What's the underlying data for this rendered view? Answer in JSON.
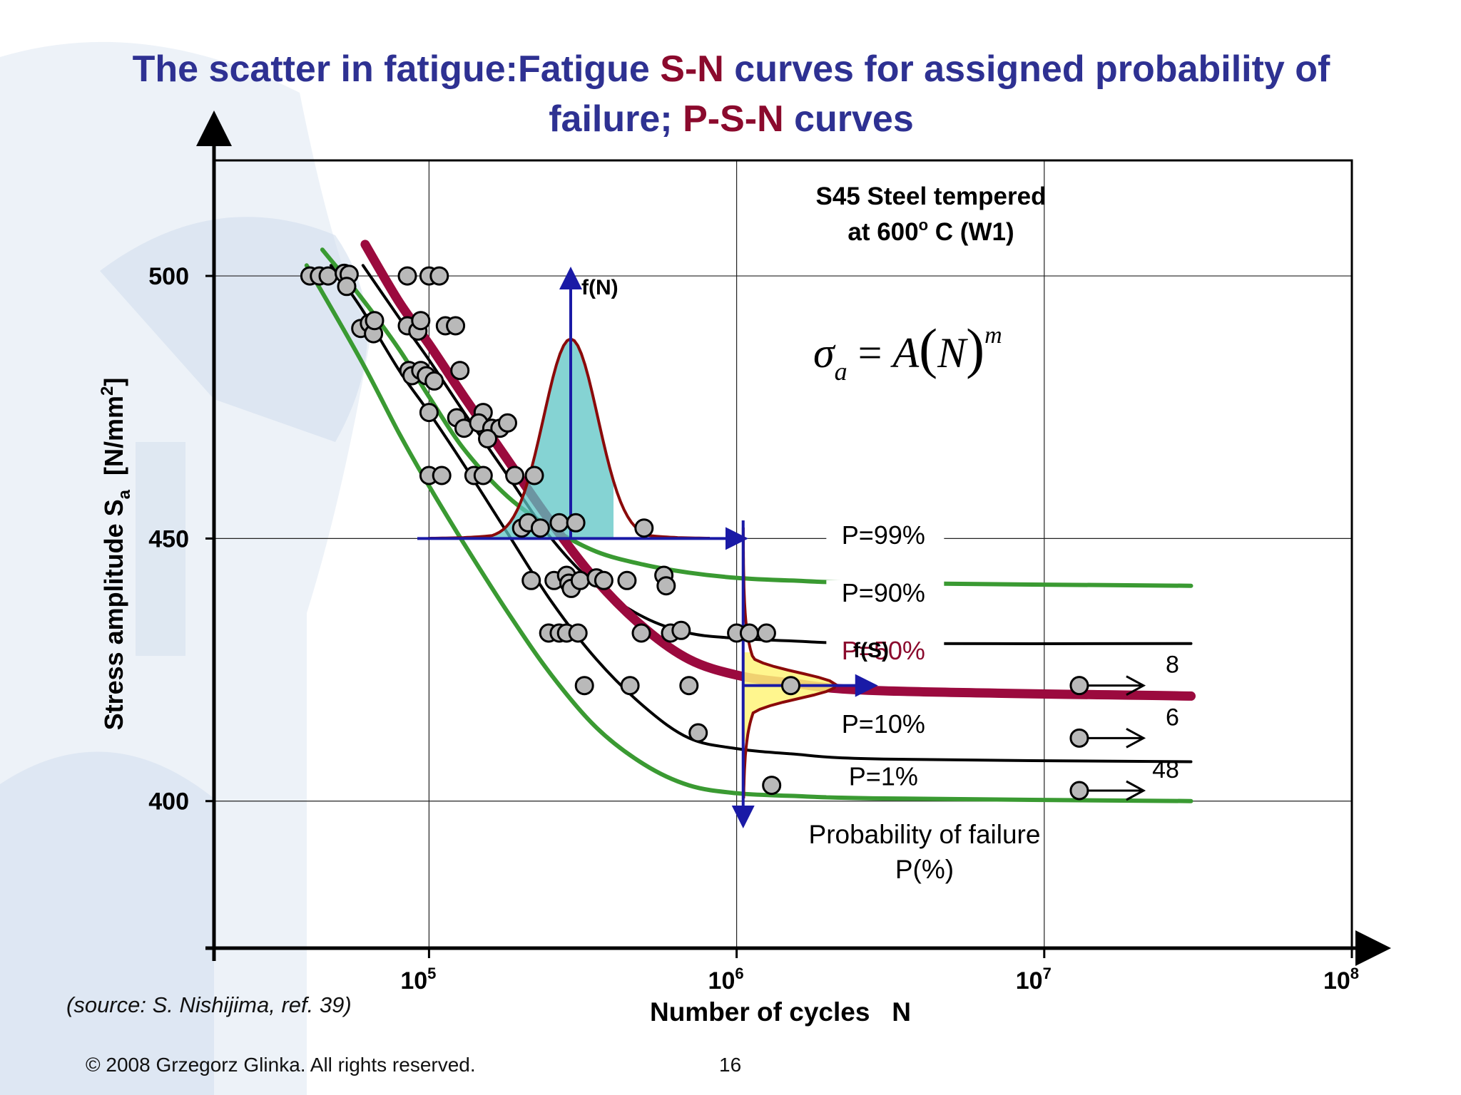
{
  "slide": {
    "title_part1": "The scatter in fatigue:Fatigue ",
    "title_hl1": "S-N",
    "title_part2": " curves for assigned probability of failure; ",
    "title_hl2": "P-S-N",
    "title_part3": " curves",
    "source": "(source: S. Nishijima, ref. 39)",
    "copyright": "© 2008 Grzegorz Glinka.  All rights reserved.",
    "page_number": "16"
  },
  "chart_data": {
    "type": "scatter",
    "title": "",
    "material_line1": "S45 Steel tempered",
    "material_line2_main": "at 600",
    "material_line2_sup": "o",
    "material_line2_end": " C (W1)",
    "formula": "σa = A(N)m",
    "xlabel": "Number of cycles   N",
    "ylabel_main": "Stress amplitude S",
    "ylabel_sub": "a",
    "ylabel_unit": "  [N/mm",
    "ylabel_unit_sup": "2",
    "ylabel_unit_end": "]",
    "xscale": "log",
    "xlim": [
      20000,
      100000000
    ],
    "ylim": [
      372,
      522
    ],
    "x_ticks": [
      {
        "value": 100000,
        "base": "10",
        "exp": "5"
      },
      {
        "value": 1000000,
        "base": "10",
        "exp": "6"
      },
      {
        "value": 10000000,
        "base": "10",
        "exp": "7"
      },
      {
        "value": 100000000,
        "base": "10",
        "exp": "8"
      }
    ],
    "y_ticks": [
      400,
      450,
      500
    ],
    "grid": true,
    "colors": {
      "green": "#3a9a32",
      "black": "#000000",
      "median": "#9b0a3e",
      "axis_blue": "#1a1aa6",
      "points_fill": "#b9b9b9",
      "fN_fill": "#5cc4c4",
      "fS_fill": "#fff47a",
      "text_dark_red": "#8b0a2d"
    },
    "series": [
      {
        "name": "P=99%",
        "color": "#3a9a32",
        "x": [
          45000,
          60000,
          80000,
          100000,
          130000,
          180000,
          250000,
          350000,
          500000,
          700000,
          1000000,
          1500000,
          3000000,
          30000000
        ],
        "y": [
          505,
          496,
          486,
          477,
          467,
          458,
          452,
          447.5,
          445,
          443.5,
          442.5,
          442,
          441.5,
          441
        ]
      },
      {
        "name": "P=90%",
        "color": "#000000",
        "x": [
          61000,
          80000,
          100000,
          130000,
          180000,
          250000,
          350000,
          500000,
          700000,
          1000000,
          1500000,
          3000000,
          30000000
        ],
        "y": [
          502,
          492,
          484,
          474,
          462,
          450,
          441,
          435,
          432,
          431,
          430.5,
          430,
          430
        ]
      },
      {
        "name": "P=50%",
        "color": "#9b0a3e",
        "x": [
          62000,
          80000,
          100000,
          130000,
          180000,
          250000,
          350000,
          500000,
          700000,
          1000000,
          1500000,
          3000000,
          30000000
        ],
        "y": [
          506,
          495,
          487,
          477,
          465,
          453,
          442,
          433,
          427,
          424,
          422.5,
          421,
          420
        ]
      },
      {
        "name": "P=10%",
        "color": "#000000",
        "x": [
          48000,
          60000,
          80000,
          100000,
          130000,
          180000,
          250000,
          350000,
          500000,
          700000,
          1000000,
          1500000,
          3000000,
          30000000
        ],
        "y": [
          502,
          494,
          482,
          474,
          464,
          451,
          438,
          427,
          418,
          412,
          410,
          409,
          408,
          407.5
        ]
      },
      {
        "name": "P=1%",
        "color": "#3a9a32",
        "x": [
          40000,
          60000,
          80000,
          100000,
          130000,
          180000,
          250000,
          350000,
          500000,
          700000,
          1000000,
          1500000,
          3000000,
          30000000
        ],
        "y": [
          502,
          484,
          470,
          460,
          449,
          436,
          424,
          414,
          407,
          403,
          401.5,
          401,
          400.5,
          400
        ]
      }
    ],
    "series_labels": [
      "P=99%",
      "P=90%",
      "P=50%",
      "P=10%",
      "P=1%"
    ],
    "series_label_positions": [
      {
        "x": 3000000,
        "y": 449
      },
      {
        "x": 3000000,
        "y": 438
      },
      {
        "x": 3000000,
        "y": 427
      },
      {
        "x": 3000000,
        "y": 413
      },
      {
        "x": 3000000,
        "y": 403
      }
    ],
    "points": [
      [
        41000,
        500
      ],
      [
        44000,
        500
      ],
      [
        47000,
        500
      ],
      [
        53000,
        500.5
      ],
      [
        55000,
        500.3
      ],
      [
        54000,
        498
      ],
      [
        85000,
        500
      ],
      [
        100000,
        500
      ],
      [
        108000,
        500
      ],
      [
        60000,
        490
      ],
      [
        64000,
        491
      ],
      [
        66000,
        489
      ],
      [
        66500,
        491.5
      ],
      [
        85000,
        490.5
      ],
      [
        92000,
        489.5
      ],
      [
        94000,
        491.5
      ],
      [
        113000,
        490.5
      ],
      [
        122000,
        490.5
      ],
      [
        86000,
        482
      ],
      [
        88000,
        481
      ],
      [
        94000,
        482
      ],
      [
        98000,
        481
      ],
      [
        104000,
        480
      ],
      [
        126000,
        482
      ],
      [
        100000,
        474
      ],
      [
        123000,
        473
      ],
      [
        150000,
        474
      ],
      [
        130000,
        471
      ],
      [
        145000,
        472
      ],
      [
        160000,
        471
      ],
      [
        170000,
        471
      ],
      [
        155000,
        469
      ],
      [
        180000,
        472
      ],
      [
        100000,
        462
      ],
      [
        110000,
        462
      ],
      [
        140000,
        462
      ],
      [
        150000,
        462
      ],
      [
        190000,
        462
      ],
      [
        220000,
        462
      ],
      [
        200000,
        452
      ],
      [
        210000,
        453
      ],
      [
        230000,
        452
      ],
      [
        265000,
        453
      ],
      [
        300000,
        453
      ],
      [
        500000,
        452
      ],
      [
        215000,
        442
      ],
      [
        255000,
        442
      ],
      [
        280000,
        443
      ],
      [
        285000,
        441.5
      ],
      [
        290000,
        440.5
      ],
      [
        310000,
        442
      ],
      [
        350000,
        442.5
      ],
      [
        370000,
        442
      ],
      [
        440000,
        442
      ],
      [
        580000,
        443
      ],
      [
        590000,
        441
      ],
      [
        245000,
        432
      ],
      [
        265000,
        432
      ],
      [
        280000,
        432
      ],
      [
        305000,
        432
      ],
      [
        490000,
        432
      ],
      [
        610000,
        432
      ],
      [
        660000,
        432.5
      ],
      [
        1000000,
        432
      ],
      [
        1100000,
        432
      ],
      [
        1250000,
        432
      ],
      [
        320000,
        422
      ],
      [
        450000,
        422
      ],
      [
        700000,
        422
      ],
      [
        1500000,
        422
      ],
      [
        750000,
        413
      ],
      [
        1300000,
        403
      ]
    ],
    "runouts": [
      {
        "x": 13000000,
        "y": 422,
        "count": "8"
      },
      {
        "x": 13000000,
        "y": 412,
        "count": "6"
      },
      {
        "x": 13000000,
        "y": 402,
        "count": "48"
      }
    ],
    "fN_label": "f(N)",
    "fS_label": "f(S)",
    "probability_label_line1": "Probability of failure",
    "probability_label_line2": "P(%)"
  }
}
